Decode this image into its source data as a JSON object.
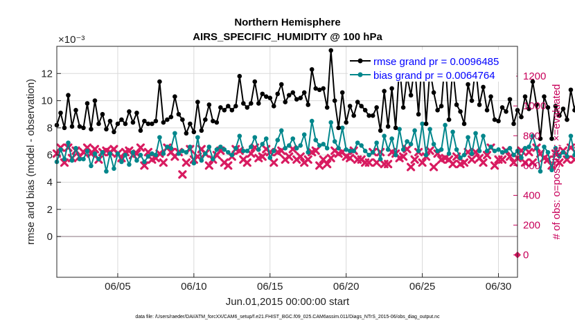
{
  "chart_data": {
    "type": "line",
    "title": "Northern Hemisphere",
    "subtitle": "AIRS_SPECIFIC_HUMIDITY @ 100 hPa",
    "ylabel": "rmse and bias (model - observation)",
    "y2label": "# of obs: o=possible; ×=evaluated",
    "xlabel": "Jun.01,2015 00:00:00 start",
    "exponent_label": "×10⁻³",
    "footnote": "data file: /Users/raeder/DAI/ATM_forcXX/CAM6_setup/f.e21.FHIST_BGC.f09_025.CAM6assim.011/Diags_NTrS_2015-06/obs_diag_output.nc",
    "ylim": [
      -3.0,
      14.0
    ],
    "y2lim": [
      -150,
      1400
    ],
    "xlim": [
      1.0,
      31.25
    ],
    "yticks": [
      {
        "value": 0,
        "label": "0"
      },
      {
        "value": 2,
        "label": "2"
      },
      {
        "value": 4,
        "label": "4"
      },
      {
        "value": 6,
        "label": "6"
      },
      {
        "value": 8,
        "label": "8"
      },
      {
        "value": 10,
        "label": "10"
      },
      {
        "value": 12,
        "label": "12"
      }
    ],
    "y2ticks": [
      {
        "value": 0,
        "label": "0"
      },
      {
        "value": 200,
        "label": "200"
      },
      {
        "value": 400,
        "label": "400"
      },
      {
        "value": 600,
        "label": "600"
      },
      {
        "value": 800,
        "label": "800"
      },
      {
        "value": 1000,
        "label": "1000"
      },
      {
        "value": 1200,
        "label": "1200"
      }
    ],
    "xticks": [
      {
        "value": 5,
        "label": "06/05"
      },
      {
        "value": 10,
        "label": "06/10"
      },
      {
        "value": 15,
        "label": "06/15"
      },
      {
        "value": 20,
        "label": "06/20"
      },
      {
        "value": 25,
        "label": "06/25"
      },
      {
        "value": 30,
        "label": "06/30"
      }
    ],
    "x_start": 1.0,
    "x_step": 0.25,
    "series": [
      {
        "name": "rmse",
        "legend": "rmse grand pr = 0.0096485",
        "color": "#000000",
        "axis": "left",
        "values": [
          8.2,
          9.1,
          8.0,
          10.4,
          8.1,
          9.3,
          8.1,
          8.0,
          9.8,
          7.9,
          10.0,
          8.3,
          9.0,
          7.9,
          8.5,
          7.7,
          8.3,
          8.6,
          8.3,
          9.2,
          8.4,
          9.1,
          7.8,
          8.5,
          8.3,
          8.3,
          8.5,
          11.4,
          8.4,
          8.6,
          8.8,
          10.3,
          9.0,
          8.6,
          7.6,
          8.3,
          7.7,
          9.9,
          7.8,
          8.6,
          9.7,
          8.5,
          8.4,
          9.5,
          9.3,
          9.6,
          9.3,
          9.6,
          11.8,
          9.8,
          9.5,
          9.8,
          11.4,
          9.8,
          10.5,
          10.3,
          10.2,
          9.6,
          10.5,
          11.2,
          9.9,
          10.4,
          10.6,
          10.1,
          10.2,
          10.6,
          9.7,
          12.3,
          10.9,
          10.8,
          10.9,
          9.5,
          13.7,
          10.0,
          8.0,
          10.6,
          8.4,
          9.6,
          8.9,
          9.9,
          9.6,
          9.3,
          8.9,
          8.9,
          9.5,
          7.8,
          10.7,
          8.1,
          10.9,
          8.0,
          12.6,
          9.5,
          11.8,
          10.4,
          12.6,
          9.0,
          13.4,
          8.3,
          12.3,
          10.6,
          9.3,
          9.6,
          13.1,
          8.6,
          12.4,
          9.7,
          9.2,
          8.3,
          11.2,
          10.0,
          12.5,
          9.7,
          11.0,
          9.3,
          10.3,
          8.6,
          8.5,
          9.5,
          9.2,
          10.1,
          8.3,
          9.3,
          8.8,
          10.3,
          9.4,
          11.4,
          9.7,
          7.2,
          10.3,
          9.5,
          7.2,
          9.6,
          8.9,
          9.4,
          8.6,
          10.8,
          9.3,
          10.7,
          8.0,
          9.5,
          8.2,
          10.5,
          9.6,
          11.8,
          9.0,
          12.6,
          10.0,
          11.1,
          10.2,
          9.3,
          10.4,
          10.9,
          10.1,
          10.6,
          10.6,
          10.0,
          10.4,
          10.1,
          10.9,
          10.6,
          9.7,
          7.8,
          9.8,
          8.8,
          7.5,
          9.0,
          8.6,
          8.2,
          8.5,
          9.4,
          8.8,
          10.1,
          9.3,
          10.0,
          8.0,
          10.0,
          9.0,
          10.8,
          9.7,
          10.0,
          10.1,
          7.0,
          10.0,
          7.2,
          7.7
        ]
      },
      {
        "name": "bias",
        "legend": "bias grand pr = 0.0064764",
        "color": "#00868b",
        "axis": "left",
        "values": [
          5.5,
          6.4,
          5.7,
          6.9,
          5.6,
          6.5,
          5.7,
          5.7,
          6.3,
          5.2,
          6.1,
          5.7,
          6.2,
          4.8,
          6.1,
          5.0,
          6.1,
          5.5,
          6.0,
          5.3,
          6.2,
          5.6,
          6.0,
          5.5,
          5.9,
          6.1,
          6.0,
          7.3,
          6.1,
          6.6,
          6.5,
          7.6,
          6.1,
          6.3,
          6.2,
          6.6,
          5.4,
          7.3,
          5.6,
          6.1,
          6.6,
          5.7,
          6.4,
          6.6,
          6.4,
          6.2,
          6.0,
          6.5,
          7.4,
          6.3,
          6.3,
          6.6,
          7.3,
          6.4,
          6.8,
          7.2,
          5.8,
          6.3,
          7.1,
          7.8,
          6.5,
          6.7,
          7.2,
          6.5,
          6.7,
          7.5,
          6.2,
          8.5,
          7.1,
          6.7,
          6.8,
          6.5,
          8.4,
          7.0,
          6.5,
          8.0,
          6.4,
          6.3,
          6.3,
          6.9,
          6.7,
          6.3,
          6.0,
          6.2,
          6.9,
          5.7,
          7.4,
          6.4,
          7.2,
          6.0,
          7.9,
          6.4,
          7.0,
          6.8,
          7.8,
          6.3,
          8.3,
          6.0,
          7.9,
          6.8,
          6.3,
          6.4,
          8.2,
          6.1,
          7.7,
          6.4,
          5.8,
          6.0,
          7.3,
          6.1,
          7.6,
          6.3,
          7.4,
          6.3,
          6.6,
          6.3,
          6.4,
          6.2,
          6.3,
          6.5,
          6.0,
          6.3,
          5.8,
          6.5,
          6.6,
          7.4,
          6.5,
          4.8,
          6.6,
          6.2,
          4.9,
          6.5,
          5.9,
          6.2,
          5.9,
          7.4,
          6.0,
          7.2,
          5.2,
          6.5,
          5.4,
          7.8,
          6.1,
          7.4,
          5.9,
          8.2,
          6.3,
          7.2,
          6.6,
          6.2,
          6.5,
          7.6,
          6.2,
          7.0,
          7.2,
          6.2,
          7.5,
          6.7,
          7.3,
          7.2,
          6.3,
          5.6,
          7.0,
          6.2,
          5.7,
          6.3,
          6.5,
          5.8,
          6.3,
          6.5,
          5.9,
          7.1,
          6.2,
          6.6,
          5.9,
          6.5,
          6.3,
          7.2,
          6.1,
          6.7,
          6.9,
          5.6,
          6.4,
          5.0,
          5.4
        ]
      },
      {
        "name": "obs possible/evaluated",
        "legend": "",
        "color": "#d81b60",
        "axis": "right",
        "values": [
          680,
          720,
          620,
          720,
          650,
          700,
          660,
          690,
          720,
          680,
          710,
          640,
          690,
          700,
          690,
          710,
          680,
          650,
          690,
          700,
          670,
          680,
          720,
          600,
          690,
          640,
          650,
          680,
          620,
          720,
          690,
          660,
          690,
          540,
          620,
          710,
          640,
          660,
          710,
          680,
          600,
          640,
          670,
          700,
          620,
          600,
          660,
          710,
          700,
          640,
          620,
          680,
          720,
          650,
          660,
          710,
          690,
          620,
          690,
          700,
          640,
          660,
          710,
          640,
          660,
          620,
          640,
          690,
          700,
          600,
          640,
          610,
          650,
          700,
          680,
          690,
          660,
          650,
          700,
          640,
          640,
          620,
          620,
          690,
          620,
          690,
          610,
          610,
          690,
          680,
          650,
          660,
          710,
          590,
          640,
          690,
          620,
          660,
          700,
          590,
          680,
          640,
          650,
          640,
          610,
          660,
          610,
          620,
          690,
          640,
          690,
          650,
          620,
          670,
          720,
          600,
          640,
          640,
          700,
          660,
          620,
          650,
          700,
          620,
          690,
          620,
          720,
          680,
          650,
          640,
          600,
          680,
          620,
          700,
          640,
          720,
          640,
          700,
          640,
          660,
          650,
          700,
          660,
          690,
          640,
          700,
          610,
          700,
          650,
          680,
          610,
          690,
          680,
          660,
          700,
          640,
          650,
          610,
          680,
          620,
          700,
          640,
          700,
          660,
          680,
          640,
          600,
          640,
          640,
          700,
          650,
          690,
          660,
          700,
          640,
          650,
          690,
          640,
          700,
          650,
          710,
          640,
          610,
          700,
          720,
          640,
          690,
          690,
          710,
          680,
          710
        ]
      }
    ]
  }
}
